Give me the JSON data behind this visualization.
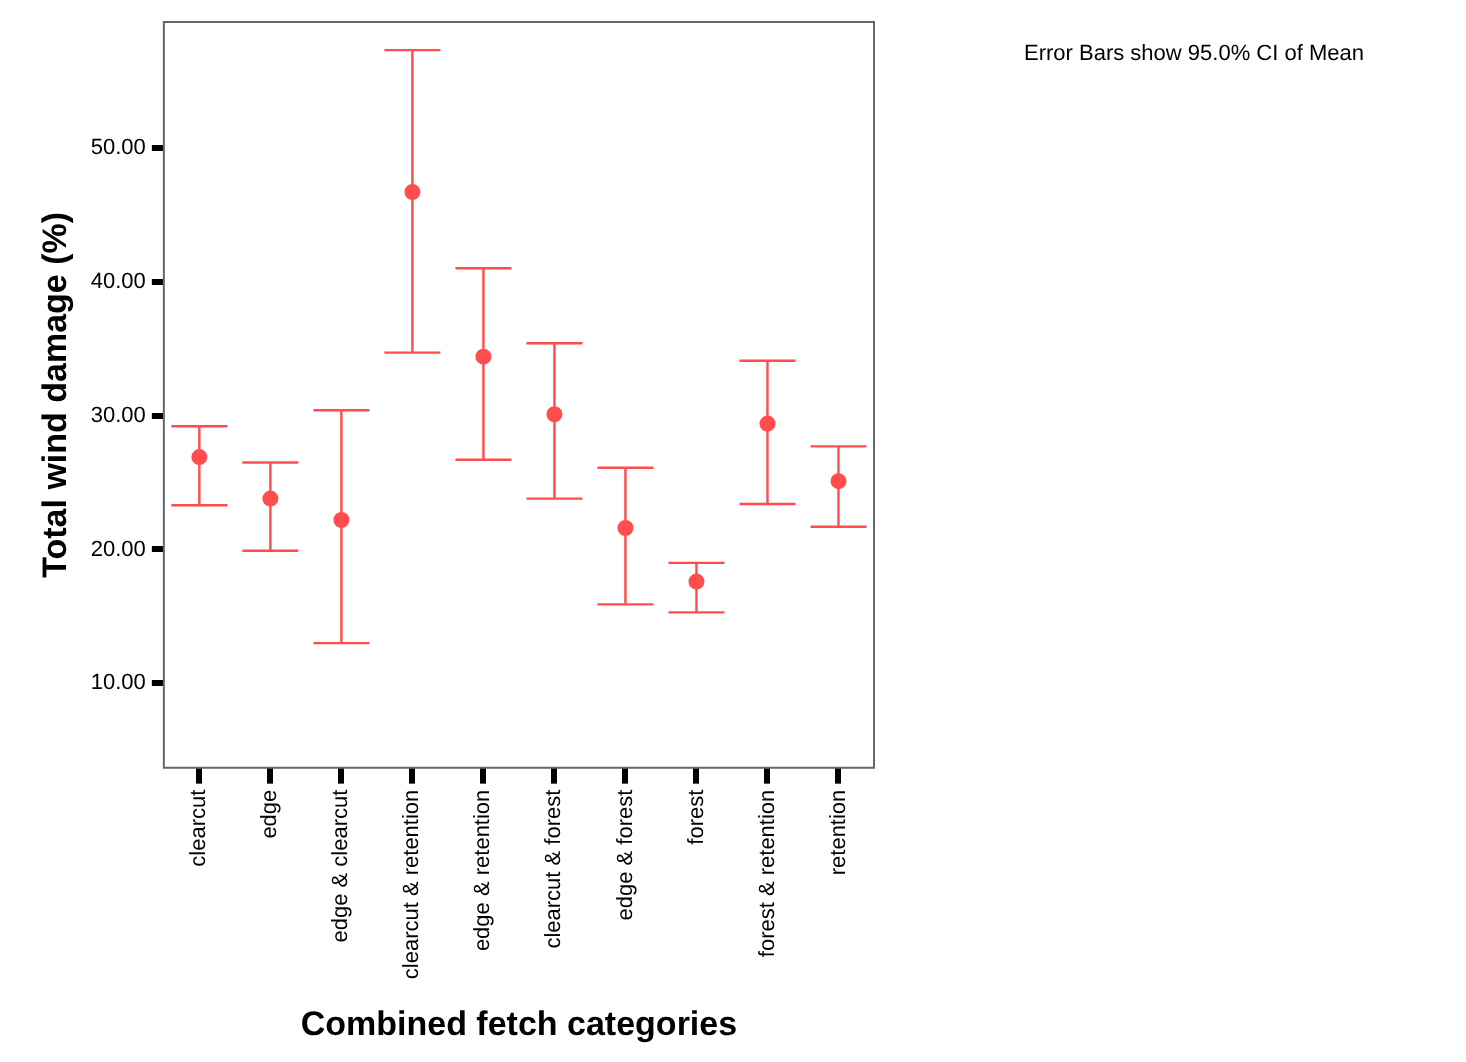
{
  "chart_data": {
    "type": "scatter",
    "xlabel": "Combined fetch categories",
    "ylabel": "Total wind damage (%)",
    "annotations": [
      "Error Bars show 95.0% CI of Mean"
    ],
    "categories": [
      "clearcut",
      "edge",
      "edge & clearcut",
      "clearcut & retention",
      "edge & retention",
      "clearcut & forest",
      "edge & forest",
      "forest",
      "forest & retention",
      "retention"
    ],
    "series": [
      {
        "color": "#ff4d4d",
        "values": [
          26.9,
          23.8,
          22.2,
          46.7,
          34.4,
          30.1,
          21.6,
          17.6,
          29.4,
          25.1
        ],
        "errors": [
          [
            23.3,
            29.2
          ],
          [
            19.9,
            26.5
          ],
          [
            13.0,
            30.4
          ],
          [
            34.7,
            57.3
          ],
          [
            26.7,
            41.0
          ],
          [
            23.8,
            35.4
          ],
          [
            15.9,
            26.1
          ],
          [
            15.3,
            19.0
          ],
          [
            23.4,
            34.1
          ],
          [
            21.7,
            27.7
          ]
        ]
      }
    ],
    "ylim": [
      3.7,
      59.4
    ],
    "yticks": [
      {
        "value": 10,
        "label": "10.00"
      },
      {
        "value": 20,
        "label": "20.00"
      },
      {
        "value": 30,
        "label": "30.00"
      },
      {
        "value": 40,
        "label": "40.00"
      },
      {
        "value": 50,
        "label": "50.00"
      }
    ],
    "grid": false,
    "legend": false,
    "marker": "circle"
  }
}
